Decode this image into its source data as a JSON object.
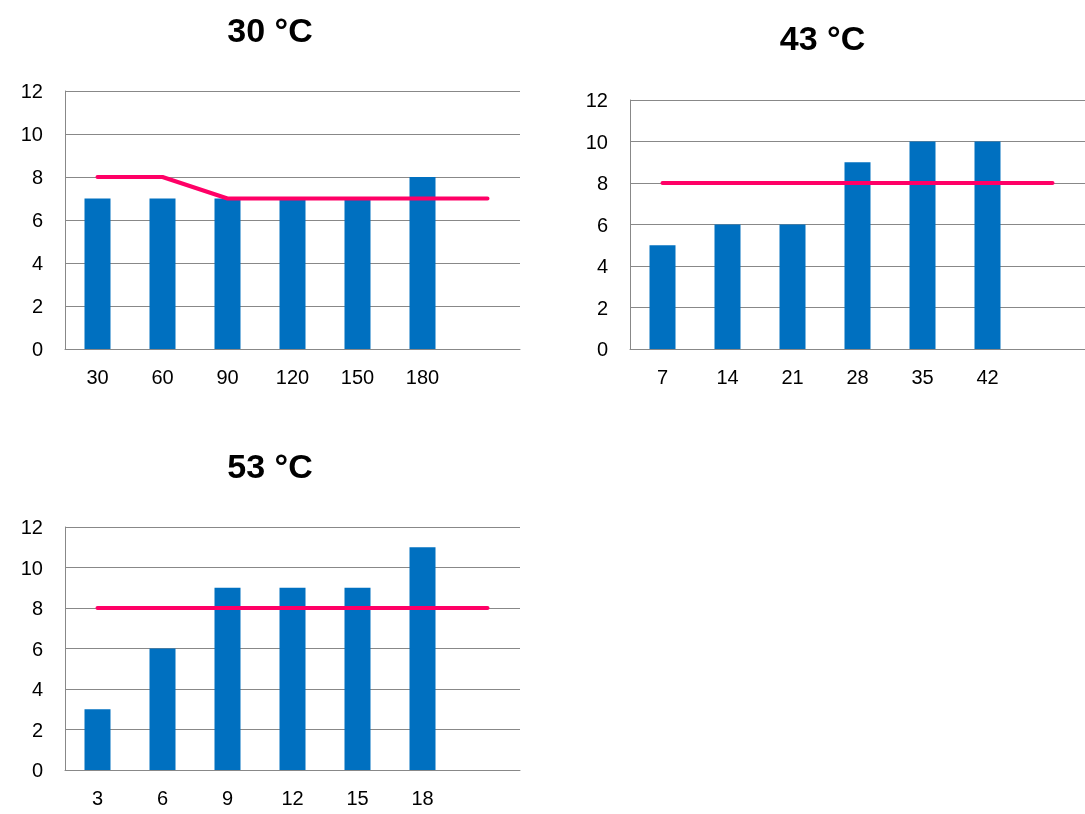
{
  "chart_data": [
    {
      "type": "bar",
      "title": "30 °C",
      "categories": [
        "30",
        "60",
        "90",
        "120",
        "150",
        "180",
        null
      ],
      "ylim": [
        0,
        12
      ],
      "yticks": [
        0,
        2,
        4,
        6,
        8,
        10,
        12
      ],
      "grid": "y",
      "series": [
        {
          "color": "#0070c0",
          "values": [
            7,
            7,
            7,
            7,
            7,
            8,
            null
          ]
        },
        {
          "type": "line",
          "color": "#ff0066",
          "marker": "none",
          "line_style": "solid",
          "values": [
            8,
            8,
            7,
            7,
            7,
            7,
            7
          ]
        }
      ]
    },
    {
      "type": "bar",
      "title": "43 °C",
      "categories": [
        "7",
        "14",
        "21",
        "28",
        "35",
        "42",
        null
      ],
      "ylim": [
        0,
        12
      ],
      "yticks": [
        0,
        2,
        4,
        6,
        8,
        10,
        12
      ],
      "grid": "y",
      "series": [
        {
          "color": "#0070c0",
          "values": [
            5,
            6,
            6,
            9,
            10,
            10,
            null
          ]
        },
        {
          "type": "line",
          "color": "#ff0066",
          "marker": "none",
          "line_style": "solid",
          "values": [
            8,
            8,
            8,
            8,
            8,
            8,
            8
          ]
        }
      ]
    },
    {
      "type": "bar",
      "title": "53 °C",
      "categories": [
        "3",
        "6",
        "9",
        "12",
        "15",
        "18",
        null
      ],
      "ylim": [
        0,
        12
      ],
      "yticks": [
        0,
        2,
        4,
        6,
        8,
        10,
        12
      ],
      "grid": "y",
      "series": [
        {
          "color": "#0070c0",
          "values": [
            3,
            6,
            9,
            9,
            9,
            11,
            null
          ]
        },
        {
          "type": "line",
          "color": "#ff0066",
          "marker": "none",
          "line_style": "solid",
          "values": [
            8,
            8,
            8,
            8,
            8,
            8,
            8
          ]
        }
      ]
    }
  ]
}
